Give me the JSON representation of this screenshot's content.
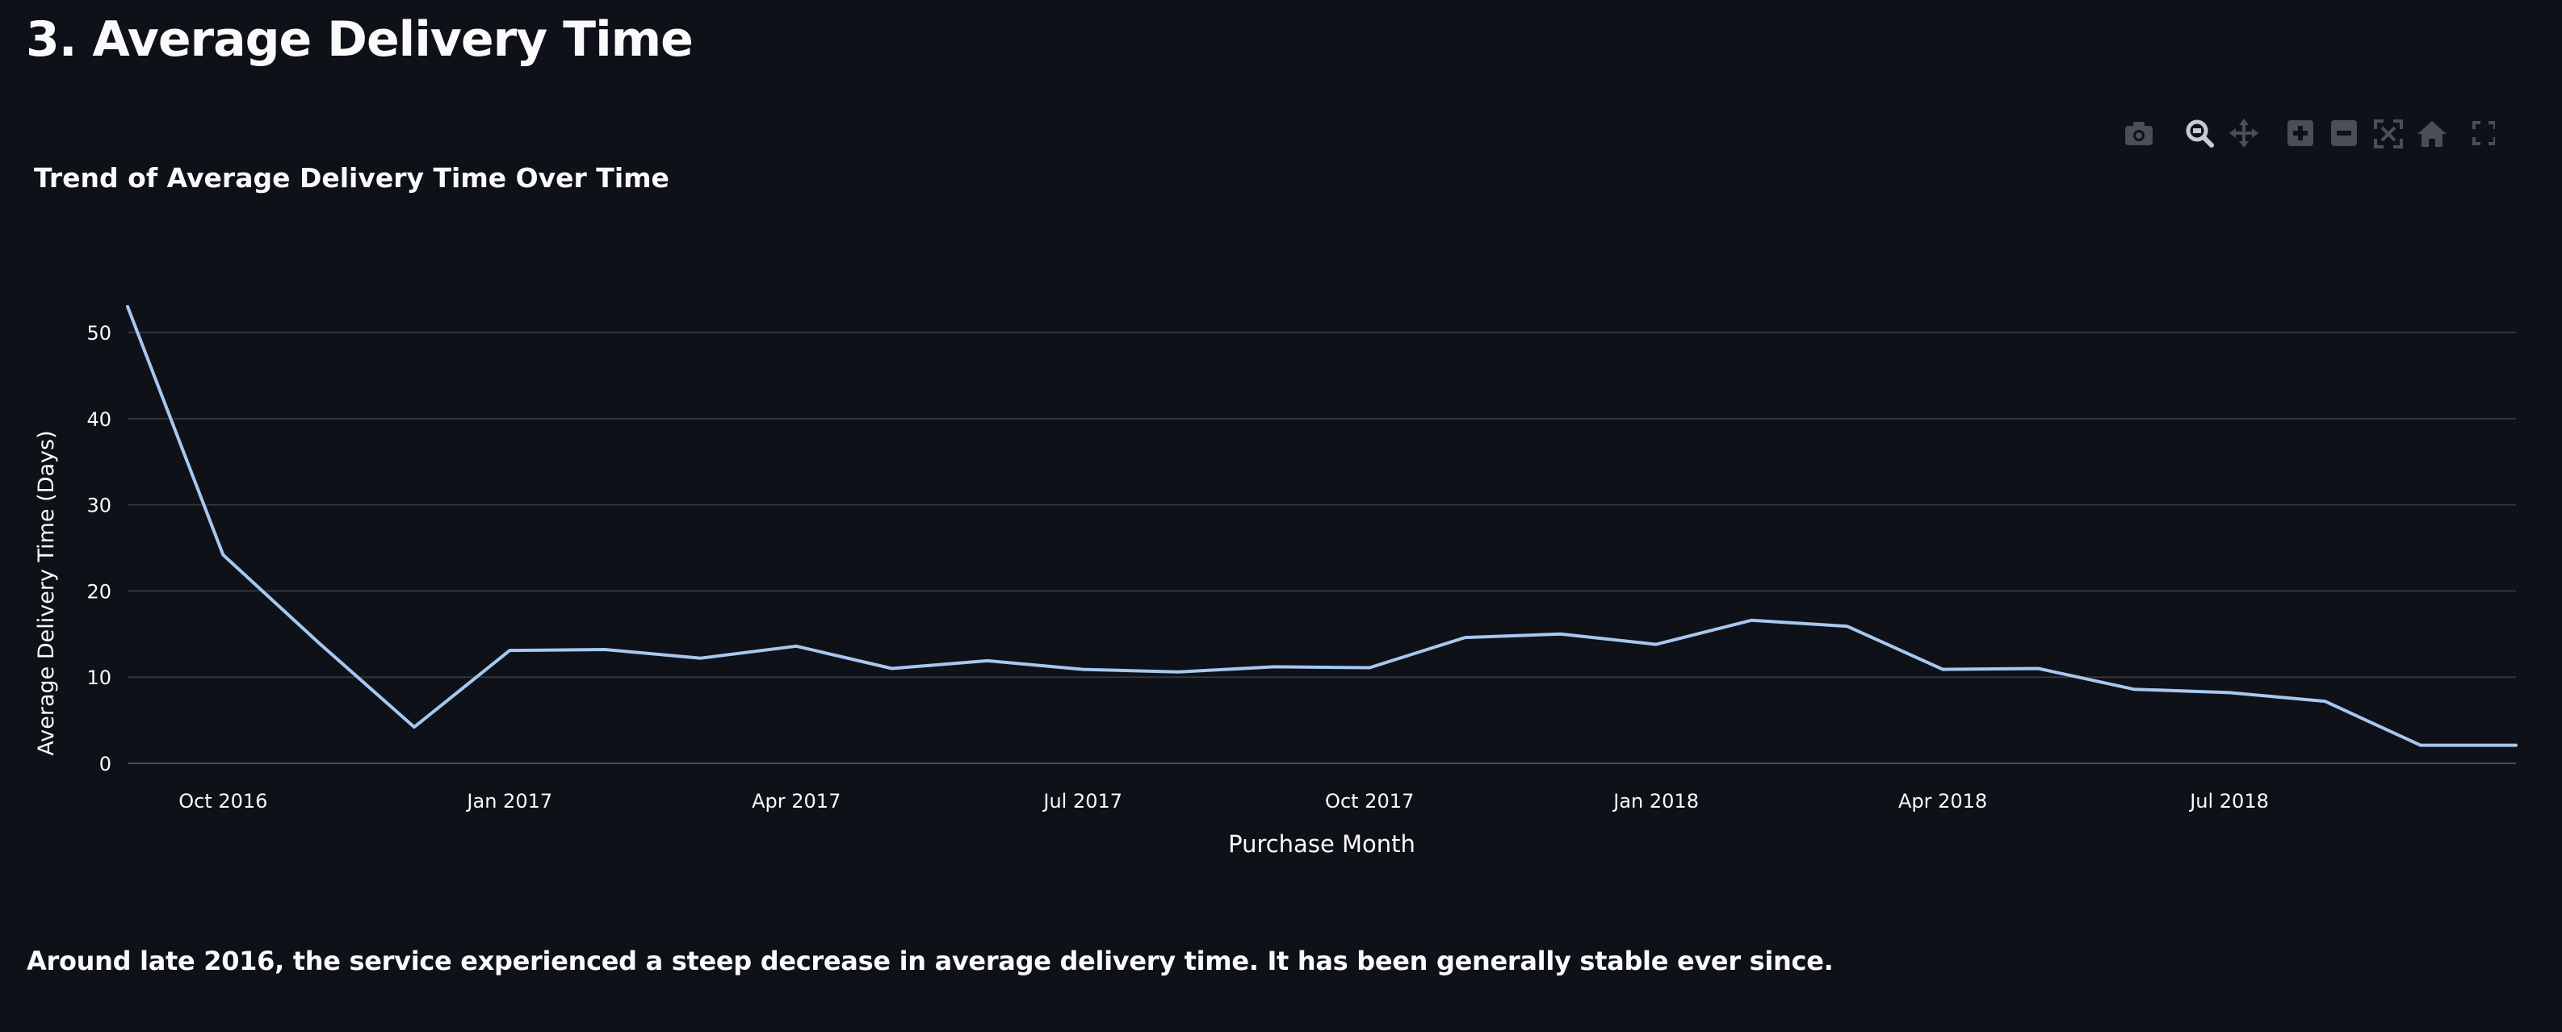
{
  "page": {
    "section_title": "3. Average Delivery Time",
    "caption": "Around late 2016, the service experienced a steep decrease in average delivery time. It has been generally stable ever since."
  },
  "modebar": {
    "icons": [
      "camera-icon",
      "zoom-icon",
      "pan-icon",
      "zoom-in-icon",
      "zoom-out-icon",
      "autoscale-icon",
      "reset-axes-icon",
      "fullscreen-icon"
    ]
  },
  "chart_data": {
    "type": "line",
    "title": "Trend of Average Delivery Time Over Time",
    "xlabel": "Purchase Month",
    "ylabel": "Average Delivery Time (Days)",
    "line_color": "#a6c8f0",
    "grid": true,
    "ylim": [
      0,
      53
    ],
    "xlim": [
      "2016-09",
      "2018-10"
    ],
    "yticks": [
      0,
      10,
      20,
      30,
      40,
      50
    ],
    "xticks": [
      {
        "x": "2016-10",
        "label": "Oct 2016"
      },
      {
        "x": "2017-01",
        "label": "Jan 2017"
      },
      {
        "x": "2017-04",
        "label": "Apr 2017"
      },
      {
        "x": "2017-07",
        "label": "Jul 2017"
      },
      {
        "x": "2017-10",
        "label": "Oct 2017"
      },
      {
        "x": "2018-01",
        "label": "Jan 2018"
      },
      {
        "x": "2018-04",
        "label": "Apr 2018"
      },
      {
        "x": "2018-07",
        "label": "Jul 2018"
      }
    ],
    "series": [
      {
        "x": [
          "2016-09",
          "2016-10",
          "2016-11",
          "2016-12",
          "2017-01",
          "2017-02",
          "2017-03",
          "2017-04",
          "2017-05",
          "2017-06",
          "2017-07",
          "2017-08",
          "2017-09",
          "2017-10",
          "2017-11",
          "2017-12",
          "2018-01",
          "2018-02",
          "2018-03",
          "2018-04",
          "2018-05",
          "2018-06",
          "2018-07",
          "2018-08",
          "2018-09",
          "2018-10"
        ],
        "values": [
          53,
          24.2,
          14,
          4.2,
          13.1,
          13.2,
          12.2,
          13.6,
          11,
          11.9,
          10.9,
          10.6,
          11.2,
          11.1,
          14.6,
          15,
          13.8,
          16.6,
          15.9,
          10.9,
          11,
          8.6,
          8.2,
          7.2,
          2.1,
          2.1
        ]
      }
    ]
  }
}
